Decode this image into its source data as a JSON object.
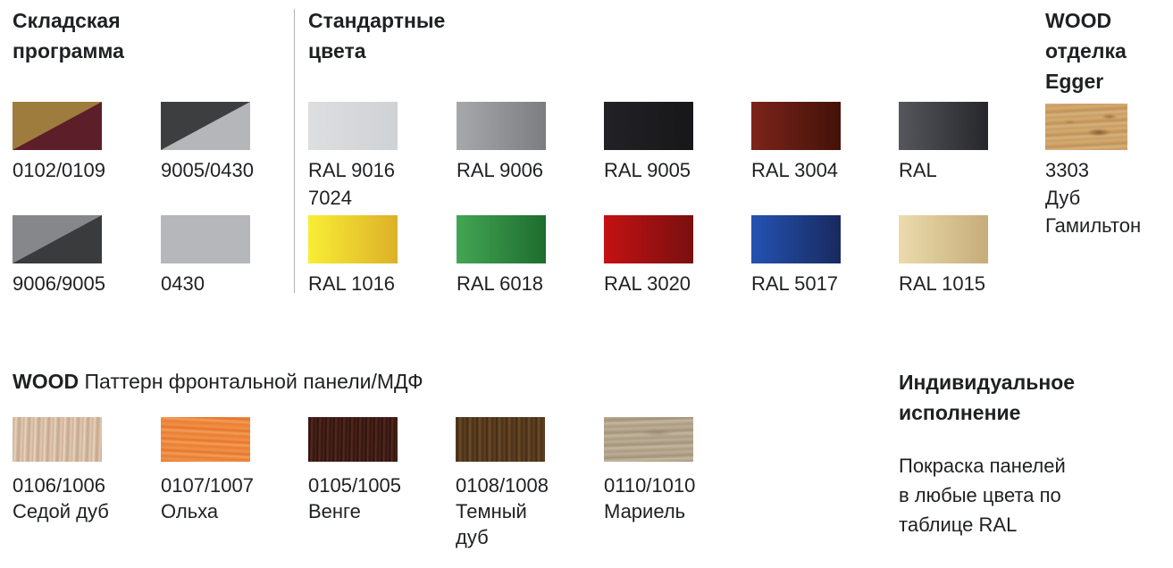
{
  "page": {
    "background": "#ffffff",
    "text_color": "#1f2023",
    "divider_color": "#b3b3b3"
  },
  "sections": {
    "warehouse": {
      "title": "Складская\nпрограмма",
      "swatches": [
        {
          "label": "0102/0109",
          "type": "diagonal",
          "top_left": "#9d7c3e",
          "bottom_right": "#5c1f2a"
        },
        {
          "label": "9005/0430",
          "type": "diagonal",
          "top_left": "#3d3e40",
          "bottom_right": "#b4b6b9"
        },
        {
          "label": "9006/9005",
          "type": "diagonal",
          "top_left": "#85878a",
          "bottom_right": "#3a3b3d"
        },
        {
          "label": "0430",
          "type": "solid",
          "color": "#b5b7ba"
        }
      ]
    },
    "standard": {
      "title": "Стандартные\nцвета",
      "swatches": [
        {
          "label": "RAL 9016\n7024",
          "type": "gradient",
          "from": "#dcdee0",
          "to": "#cfd2d4"
        },
        {
          "label": "RAL 9006",
          "type": "gradient",
          "from": "#a6a8ab",
          "to": "#7b7d81"
        },
        {
          "label": "RAL 9005",
          "type": "gradient",
          "from": "#222226",
          "to": "#171719"
        },
        {
          "label": "RAL 3004",
          "type": "gradient",
          "from": "#7c241a",
          "to": "#431208"
        },
        {
          "label": "RAL",
          "type": "gradient",
          "from": "#55575d",
          "to": "#25272b"
        },
        {
          "label": "RAL 1016",
          "type": "gradient",
          "from": "#f8ee35",
          "to": "#ddb028"
        },
        {
          "label": "RAL 6018",
          "type": "gradient",
          "from": "#43a653",
          "to": "#1e6c2e"
        },
        {
          "label": "RAL 3020",
          "type": "gradient",
          "from": "#c41114",
          "to": "#79100f"
        },
        {
          "label": "RAL 5017",
          "type": "gradient",
          "from": "#2452b2",
          "to": "#182a5e"
        },
        {
          "label": "RAL 1015",
          "type": "gradient",
          "from": "#ebdbac",
          "to": "#c6ac79"
        }
      ]
    },
    "wood_egger": {
      "title": "WOOD\nотделка\nEgger",
      "swatches": [
        {
          "label": "3303\nДуб\nГамильтон",
          "type": "texture",
          "texture": "hamilton"
        }
      ]
    },
    "wood_pattern": {
      "title_bold": "WOOD",
      "title_rest": "Паттерн фронтальной панели/МДФ",
      "swatches": [
        {
          "label": "0106/1006\nСедой дуб",
          "type": "texture",
          "texture": "grey-oak"
        },
        {
          "label": "0107/1007\nОльха",
          "type": "texture",
          "texture": "alder"
        },
        {
          "label": "0105/1005\nВенге",
          "type": "texture",
          "texture": "wenge"
        },
        {
          "label": "0108/1008\nТемный\nдуб",
          "type": "texture",
          "texture": "dark-oak"
        },
        {
          "label": "0110/1010\nМариель",
          "type": "texture",
          "texture": "mariel"
        }
      ]
    },
    "custom": {
      "title": "Индивидуальное\nисполнение",
      "body": "Покраска панелей\nв любые цвета по\nтаблице RAL"
    }
  }
}
